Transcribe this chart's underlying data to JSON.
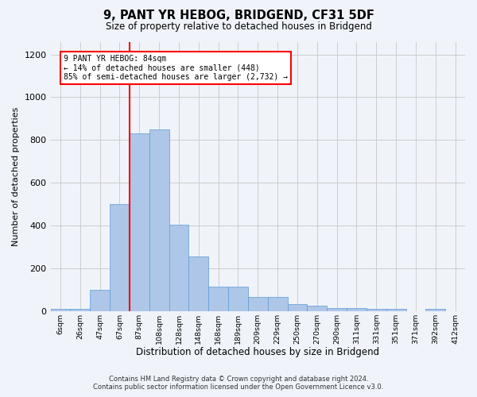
{
  "title_line1": "9, PANT YR HEBOG, BRIDGEND, CF31 5DF",
  "title_line2": "Size of property relative to detached houses in Bridgend",
  "xlabel": "Distribution of detached houses by size in Bridgend",
  "ylabel": "Number of detached properties",
  "bar_values": [
    10,
    10,
    100,
    500,
    830,
    850,
    405,
    255,
    115,
    115,
    65,
    65,
    30,
    25,
    15,
    15,
    10,
    10,
    0,
    10,
    0
  ],
  "bar_labels": [
    "6sqm",
    "26sqm",
    "47sqm",
    "67sqm",
    "87sqm",
    "108sqm",
    "128sqm",
    "148sqm",
    "168sqm",
    "189sqm",
    "209sqm",
    "229sqm",
    "250sqm",
    "270sqm",
    "290sqm",
    "311sqm",
    "331sqm",
    "351sqm",
    "371sqm",
    "392sqm",
    "412sqm"
  ],
  "bar_color": "#aec6e8",
  "bar_edge_color": "#5b9bd5",
  "vline_color": "red",
  "vline_x": 3.5,
  "annotation_text": "9 PANT YR HEBOG: 84sqm\n← 14% of detached houses are smaller (448)\n85% of semi-detached houses are larger (2,732) →",
  "annotation_box_color": "white",
  "annotation_box_edge": "red",
  "ylim": [
    0,
    1260
  ],
  "yticks": [
    0,
    200,
    400,
    600,
    800,
    1000,
    1200
  ],
  "footer_line1": "Contains HM Land Registry data © Crown copyright and database right 2024.",
  "footer_line2": "Contains public sector information licensed under the Open Government Licence v3.0.",
  "bg_color": "#f0f4fa",
  "grid_color": "#cccccc"
}
